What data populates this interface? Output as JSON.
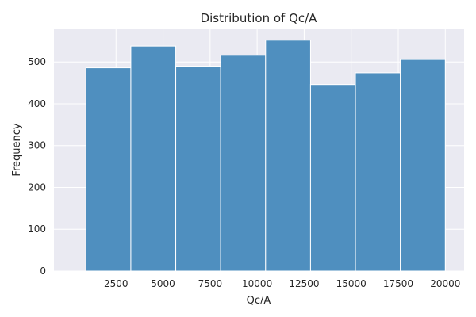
{
  "chart_data": {
    "type": "bar",
    "title": "Distribution of Qc/A",
    "xlabel": "Qc/A",
    "ylabel": "Frequency",
    "xlim": [
      -800,
      21000
    ],
    "ylim": [
      0,
      580
    ],
    "xticks": [
      2500,
      5000,
      7500,
      10000,
      12500,
      15000,
      17500,
      20000
    ],
    "yticks": [
      0,
      100,
      200,
      300,
      400,
      500
    ],
    "bins": [
      {
        "x0": 900,
        "x1": 3287,
        "count": 486
      },
      {
        "x0": 3287,
        "x1": 5675,
        "count": 538
      },
      {
        "x0": 5675,
        "x1": 8062,
        "count": 490
      },
      {
        "x0": 8062,
        "x1": 10450,
        "count": 516
      },
      {
        "x0": 10450,
        "x1": 12838,
        "count": 552
      },
      {
        "x0": 12838,
        "x1": 15225,
        "count": 446
      },
      {
        "x0": 15225,
        "x1": 17612,
        "count": 474
      },
      {
        "x0": 17612,
        "x1": 20000,
        "count": 506
      }
    ],
    "grid": true,
    "colors": {
      "bar": "#4f8fbf",
      "background": "#eaeaf2",
      "grid": "#ffffff"
    }
  }
}
